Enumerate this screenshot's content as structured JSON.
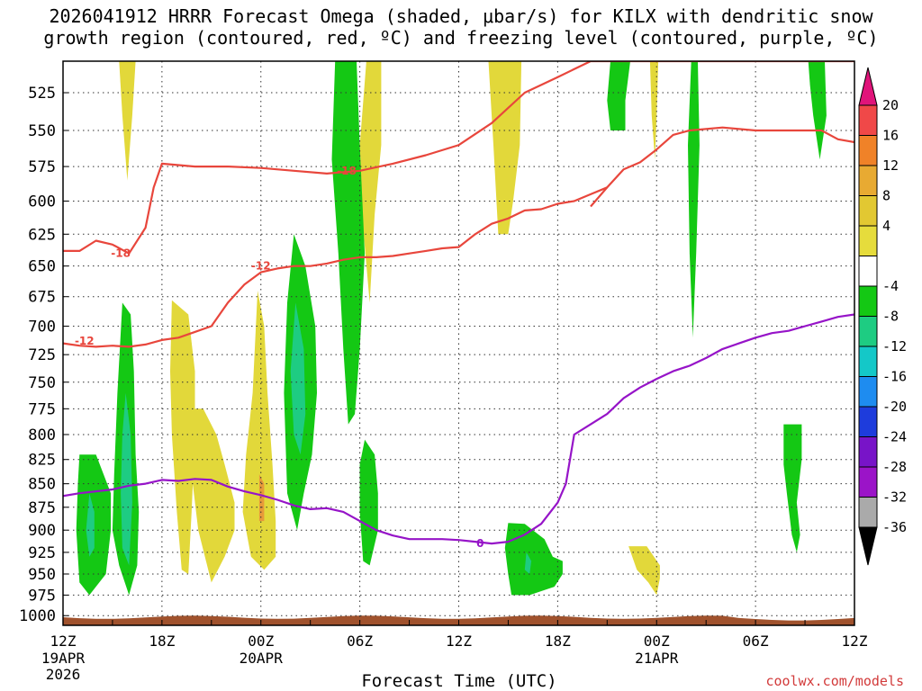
{
  "title": "2026041912 HRRR Forecast Omega (shaded, μbar/s) for KILX with dendritic snow\ngrowth region (contoured, red, ºC) and freezing level (contoured, purple, ºC)",
  "xaxis_title": "Forecast Time (UTC)",
  "credit": "coolwx.com/models",
  "chart_data": {
    "type": "contour",
    "title": "2026041912 HRRR Forecast Omega (shaded, μbar/s) for KILX with dendritic snow growth region (contoured, red, ºC) and freezing level (contoured, purple, ºC)",
    "xlabel": "Forecast Time (UTC)",
    "ylabel": "",
    "x_range_hours": [
      0,
      48
    ],
    "y_range_mb": [
      1012,
      505
    ],
    "y_scale": "log-pressure",
    "y_ticks": [
      525,
      550,
      575,
      600,
      625,
      650,
      675,
      700,
      725,
      750,
      775,
      800,
      825,
      850,
      875,
      900,
      925,
      950,
      975,
      1000
    ],
    "x_ticks": [
      {
        "hour": 0,
        "label": "12Z",
        "sub": "19APR",
        "sub2": "2026"
      },
      {
        "hour": 6,
        "label": "18Z",
        "sub": "",
        "sub2": ""
      },
      {
        "hour": 12,
        "label": "00Z",
        "sub": "20APR",
        "sub2": ""
      },
      {
        "hour": 18,
        "label": "06Z",
        "sub": "",
        "sub2": ""
      },
      {
        "hour": 24,
        "label": "12Z",
        "sub": "",
        "sub2": ""
      },
      {
        "hour": 30,
        "label": "18Z",
        "sub": "",
        "sub2": ""
      },
      {
        "hour": 36,
        "label": "00Z",
        "sub": "21APR",
        "sub2": ""
      },
      {
        "hour": 42,
        "label": "06Z",
        "sub": "",
        "sub2": ""
      },
      {
        "hour": 48,
        "label": "12Z",
        "sub": "",
        "sub2": ""
      }
    ],
    "grid": true,
    "colorbar": {
      "placement": "right",
      "labels": [
        "20",
        "16",
        "12",
        "8",
        "4",
        "-4",
        "-8",
        "-12",
        "-16",
        "-20",
        "-24",
        "-28",
        "-32",
        "-36"
      ],
      "colors": [
        "#f04848",
        "#f08228",
        "#e8aa32",
        "#e2c832",
        "#e6dc3c",
        "#ffffff",
        "#14c814",
        "#1ecc82",
        "#14c8c8",
        "#1e8cf0",
        "#1e3cdc",
        "#7814c8",
        "#9b14c8",
        "#aaaaaa"
      ],
      "top_color": "#e0147a",
      "bottom_color": "#000000"
    },
    "omega_regions": [
      {
        "name": "w1",
        "color": "#e2d83a",
        "points": [
          [
            3.4,
            505
          ],
          [
            4.4,
            505
          ],
          [
            4.2,
            540
          ],
          [
            3.9,
            585
          ],
          [
            3.6,
            540
          ]
        ]
      },
      {
        "name": "w2",
        "color": "#e2d83a",
        "points": [
          [
            6.6,
            678
          ],
          [
            7.6,
            690
          ],
          [
            8.0,
            740
          ],
          [
            8.0,
            800
          ],
          [
            7.8,
            880
          ],
          [
            7.6,
            950
          ],
          [
            7.2,
            945
          ],
          [
            6.9,
            880
          ],
          [
            6.6,
            800
          ],
          [
            6.5,
            740
          ]
        ]
      },
      {
        "name": "w3",
        "color": "#e2d83a",
        "points": [
          [
            7.6,
            775
          ],
          [
            8.5,
            775
          ],
          [
            9.3,
            800
          ],
          [
            9.8,
            830
          ],
          [
            10.4,
            870
          ],
          [
            10.4,
            900
          ],
          [
            9.8,
            930
          ],
          [
            9.0,
            960
          ],
          [
            8.2,
            900
          ],
          [
            7.8,
            840
          ]
        ]
      },
      {
        "name": "w4",
        "color": "#e2d83a",
        "points": [
          [
            11.8,
            670
          ],
          [
            12.2,
            700
          ],
          [
            12.4,
            760
          ],
          [
            12.7,
            830
          ],
          [
            12.9,
            890
          ],
          [
            12.9,
            930
          ],
          [
            12.2,
            945
          ],
          [
            11.4,
            930
          ],
          [
            10.9,
            880
          ],
          [
            11.1,
            820
          ],
          [
            11.5,
            760
          ]
        ]
      },
      {
        "name": "w5",
        "color": "#e2d83a",
        "points": [
          [
            18.4,
            505
          ],
          [
            19.3,
            505
          ],
          [
            19.3,
            560
          ],
          [
            18.9,
            610
          ],
          [
            18.6,
            680
          ],
          [
            18.2,
            620
          ],
          [
            18.0,
            560
          ]
        ]
      },
      {
        "name": "w6",
        "color": "#e2d83a",
        "points": [
          [
            25.8,
            505
          ],
          [
            27.8,
            505
          ],
          [
            27.7,
            560
          ],
          [
            27.3,
            600
          ],
          [
            27.0,
            625
          ],
          [
            26.4,
            625
          ],
          [
            26.1,
            560
          ]
        ]
      },
      {
        "name": "w7",
        "color": "#e2d83a",
        "points": [
          [
            35.6,
            505
          ],
          [
            36.1,
            505
          ],
          [
            36.0,
            540
          ],
          [
            35.9,
            570
          ],
          [
            35.7,
            540
          ]
        ]
      },
      {
        "name": "w8",
        "color": "#e2d83a",
        "points": [
          [
            34.3,
            918
          ],
          [
            35.4,
            918
          ],
          [
            36.2,
            940
          ],
          [
            36.2,
            955
          ],
          [
            36.0,
            975
          ],
          [
            35.5,
            960
          ],
          [
            34.8,
            945
          ]
        ]
      },
      {
        "name": "g1",
        "color": "#14c814",
        "points": [
          [
            1.0,
            820
          ],
          [
            2.0,
            820
          ],
          [
            2.9,
            860
          ],
          [
            2.9,
            900
          ],
          [
            2.6,
            950
          ],
          [
            1.6,
            975
          ],
          [
            1.0,
            960
          ],
          [
            0.8,
            900
          ],
          [
            0.9,
            850
          ]
        ]
      },
      {
        "name": "g2",
        "color": "#14c814",
        "points": [
          [
            3.6,
            680
          ],
          [
            4.1,
            690
          ],
          [
            4.3,
            740
          ],
          [
            4.4,
            820
          ],
          [
            4.6,
            880
          ],
          [
            4.5,
            940
          ],
          [
            4.0,
            975
          ],
          [
            3.4,
            940
          ],
          [
            3.0,
            900
          ],
          [
            3.1,
            840
          ],
          [
            3.3,
            760
          ]
        ]
      },
      {
        "name": "g3",
        "color": "#14c814",
        "points": [
          [
            14.0,
            625
          ],
          [
            14.7,
            650
          ],
          [
            15.3,
            700
          ],
          [
            15.4,
            760
          ],
          [
            15.1,
            820
          ],
          [
            14.6,
            860
          ],
          [
            14.2,
            900
          ],
          [
            13.6,
            860
          ],
          [
            13.4,
            760
          ],
          [
            13.6,
            680
          ]
        ]
      },
      {
        "name": "g4",
        "color": "#14c814",
        "points": [
          [
            16.5,
            505
          ],
          [
            17.8,
            505
          ],
          [
            18.0,
            560
          ],
          [
            18.3,
            640
          ],
          [
            18.0,
            720
          ],
          [
            17.7,
            780
          ],
          [
            17.3,
            790
          ],
          [
            17.0,
            720
          ],
          [
            16.7,
            640
          ],
          [
            16.3,
            570
          ]
        ]
      },
      {
        "name": "g5",
        "color": "#14c814",
        "points": [
          [
            18.3,
            805
          ],
          [
            18.9,
            820
          ],
          [
            19.1,
            860
          ],
          [
            19.1,
            900
          ],
          [
            18.6,
            940
          ],
          [
            18.2,
            935
          ],
          [
            18.0,
            880
          ],
          [
            18.0,
            830
          ]
        ]
      },
      {
        "name": "g6",
        "color": "#14c814",
        "points": [
          [
            27.0,
            892
          ],
          [
            28.0,
            893
          ],
          [
            29.2,
            910
          ],
          [
            29.7,
            930
          ],
          [
            30.3,
            935
          ],
          [
            30.3,
            950
          ],
          [
            29.8,
            965
          ],
          [
            28.3,
            975
          ],
          [
            27.2,
            975
          ],
          [
            27.0,
            950
          ],
          [
            26.8,
            920
          ]
        ]
      },
      {
        "name": "g7",
        "color": "#14c814",
        "points": [
          [
            33.2,
            505
          ],
          [
            34.4,
            505
          ],
          [
            34.1,
            530
          ],
          [
            34.1,
            550
          ],
          [
            33.2,
            550
          ],
          [
            33.0,
            530
          ]
        ]
      },
      {
        "name": "g8",
        "color": "#14c814",
        "points": [
          [
            38.1,
            505
          ],
          [
            38.5,
            505
          ],
          [
            38.6,
            560
          ],
          [
            38.4,
            640
          ],
          [
            38.2,
            710
          ],
          [
            38.0,
            640
          ],
          [
            37.9,
            560
          ]
        ]
      },
      {
        "name": "g9",
        "color": "#14c814",
        "points": [
          [
            45.2,
            505
          ],
          [
            46.2,
            505
          ],
          [
            46.3,
            540
          ],
          [
            45.9,
            570
          ],
          [
            45.5,
            540
          ],
          [
            45.3,
            520
          ]
        ]
      },
      {
        "name": "g10",
        "color": "#14c814",
        "points": [
          [
            44.2,
            790
          ],
          [
            44.8,
            790
          ],
          [
            44.8,
            825
          ],
          [
            44.5,
            870
          ],
          [
            44.7,
            905
          ],
          [
            44.5,
            925
          ],
          [
            44.2,
            905
          ],
          [
            43.9,
            860
          ],
          [
            43.7,
            830
          ],
          [
            43.7,
            790
          ]
        ]
      },
      {
        "name": "t1",
        "color": "#1ecc82",
        "points": [
          [
            3.8,
            760
          ],
          [
            4.1,
            800
          ],
          [
            4.2,
            870
          ],
          [
            4.0,
            940
          ],
          [
            3.6,
            920
          ],
          [
            3.5,
            860
          ],
          [
            3.6,
            800
          ]
        ]
      },
      {
        "name": "t2",
        "color": "#1ecc82",
        "points": [
          [
            14.1,
            680
          ],
          [
            14.6,
            720
          ],
          [
            14.7,
            780
          ],
          [
            14.4,
            820
          ],
          [
            14.0,
            800
          ],
          [
            13.8,
            740
          ]
        ]
      },
      {
        "name": "t3",
        "color": "#1ecc82",
        "points": [
          [
            1.6,
            860
          ],
          [
            1.9,
            880
          ],
          [
            1.9,
            920
          ],
          [
            1.6,
            930
          ],
          [
            1.4,
            900
          ]
        ]
      },
      {
        "name": "t4",
        "color": "#1ecc82",
        "points": [
          [
            28.1,
            925
          ],
          [
            28.4,
            935
          ],
          [
            28.3,
            950
          ],
          [
            28.0,
            945
          ]
        ]
      }
    ],
    "orange_spot": {
      "color": "#e89a3a",
      "points": [
        [
          11.9,
          840
        ],
        [
          12.2,
          850
        ],
        [
          12.2,
          890
        ],
        [
          11.9,
          890
        ]
      ]
    },
    "terrain_color": "#a0522d",
    "series": [
      {
        "label": "-18",
        "color": "#e8463c",
        "x": [
          0,
          1,
          2,
          3,
          4,
          5,
          5.5,
          6,
          7,
          8,
          10,
          12,
          14,
          16,
          18,
          20,
          22,
          24,
          26,
          28,
          30,
          32,
          34,
          36,
          38,
          40,
          42,
          44,
          46,
          48
        ],
        "y": [
          638,
          638,
          630,
          633,
          640,
          620,
          590,
          573,
          574,
          575,
          575,
          576,
          578,
          580,
          578,
          573,
          567,
          560,
          545,
          525,
          515,
          505,
          505,
          505,
          505,
          505,
          505,
          505,
          505,
          505
        ],
        "label_points": [
          [
            3.5,
            640
          ],
          [
            17.2,
            578
          ]
        ]
      },
      {
        "label": "-18",
        "color": "#e8463c",
        "x": [
          32,
          33,
          34,
          35,
          36,
          37,
          38,
          40,
          42,
          44,
          46,
          47,
          48
        ],
        "y": [
          604,
          590,
          577,
          572,
          563,
          553,
          550,
          548,
          550,
          550,
          550,
          556,
          558
        ],
        "label_points": []
      },
      {
        "label": "-12",
        "color": "#e8463c",
        "x": [
          0,
          1,
          2,
          3,
          4,
          5,
          6,
          7,
          8,
          9,
          10,
          11,
          12,
          13,
          14,
          15,
          16,
          17,
          18,
          19,
          20,
          21,
          22,
          23,
          24,
          25,
          26,
          27,
          28,
          29,
          30,
          31,
          32,
          33
        ],
        "y": [
          715,
          717,
          718,
          717,
          718,
          716,
          712,
          710,
          705,
          700,
          680,
          665,
          655,
          652,
          650,
          650,
          648,
          645,
          643,
          643,
          642,
          640,
          638,
          636,
          635,
          625,
          617,
          613,
          607,
          606,
          602,
          600,
          595,
          590
        ],
        "label_points": [
          [
            1.3,
            713
          ],
          [
            12.0,
            650
          ]
        ]
      },
      {
        "label": "0",
        "color": "#9614c8",
        "x": [
          0,
          1,
          2,
          3,
          4,
          5,
          6,
          7,
          8,
          9,
          10,
          11,
          12,
          13,
          14,
          15,
          16,
          17,
          18,
          19,
          20,
          21,
          22,
          23,
          24,
          25,
          26,
          27,
          28,
          29,
          30,
          30.5,
          31,
          32,
          33,
          34,
          35,
          36,
          37,
          38,
          39,
          40,
          41,
          42,
          43,
          44,
          45,
          46,
          47,
          48
        ],
        "y": [
          863,
          860,
          858,
          856,
          852,
          850,
          846,
          847,
          845,
          846,
          853,
          858,
          862,
          867,
          873,
          877,
          876,
          880,
          890,
          900,
          906,
          910,
          910,
          910,
          911,
          913,
          915,
          913,
          905,
          893,
          870,
          850,
          800,
          790,
          780,
          765,
          755,
          747,
          740,
          735,
          728,
          720,
          715,
          710,
          706,
          704,
          700,
          696,
          692,
          690
        ],
        "label_points": [
          [
            25.3,
            915
          ]
        ]
      }
    ]
  }
}
